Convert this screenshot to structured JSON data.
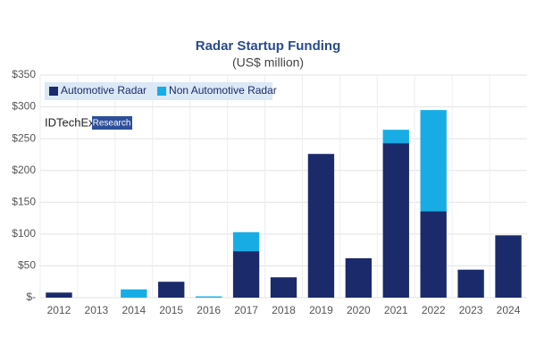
{
  "chart_data": {
    "type": "stacked_bar",
    "title": "Radar Startup Funding",
    "subtitle": "(US$ million)",
    "categories": [
      "2012",
      "2013",
      "2014",
      "2015",
      "2016",
      "2017",
      "2018",
      "2019",
      "2020",
      "2021",
      "2022",
      "2023",
      "2024"
    ],
    "series": [
      {
        "name": "Automotive Radar",
        "color": "#1b2a6b",
        "values": [
          8,
          0,
          0,
          25,
          0,
          73,
          32,
          226,
          62,
          243,
          136,
          44,
          98
        ]
      },
      {
        "name": "Non Automotive Radar",
        "color": "#17ade4",
        "values": [
          0,
          0,
          13,
          0,
          2,
          30,
          0,
          0,
          0,
          21,
          159,
          0,
          0
        ]
      }
    ],
    "ylim": [
      0,
      350
    ],
    "yticks": [
      {
        "value": 0,
        "label": "$-"
      },
      {
        "value": 50,
        "label": "$50"
      },
      {
        "value": 100,
        "label": "$100"
      },
      {
        "value": 150,
        "label": "$150"
      },
      {
        "value": 200,
        "label": "$200"
      },
      {
        "value": 250,
        "label": "$250"
      },
      {
        "value": 300,
        "label": "$300"
      },
      {
        "value": 350,
        "label": "$350"
      }
    ],
    "grid": true,
    "legend": "top-left"
  },
  "watermark": {
    "brand": "IDTechEx",
    "tag": "Research"
  }
}
